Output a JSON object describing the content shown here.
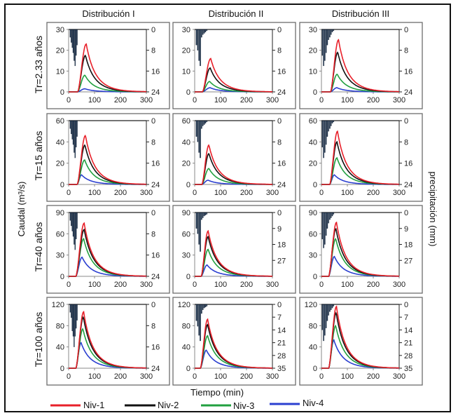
{
  "chart_data": {
    "type": "line",
    "layout": "grid 4 rows x 3 columns of hydrograph panels with inverted hyetograph bars",
    "ylabel_left": "Caudal (m³/s)",
    "ylabel_right": "precipitación (mm)",
    "xlabel": "Tiempo (min)",
    "columns": [
      "Distribución I",
      "Distribución II",
      "Distribución III"
    ],
    "rows": [
      "Tr=2.33 años",
      "Tr=15 años",
      "Tr=40 años",
      "Tr=100 años"
    ],
    "legend": [
      {
        "name": "Niv-1",
        "color": "#e8202a"
      },
      {
        "name": "Niv-2",
        "color": "#111111"
      },
      {
        "name": "Niv-3",
        "color": "#22a040"
      },
      {
        "name": "Niv-4",
        "color": "#2b3fd0"
      }
    ],
    "bar_color": "#1c3350",
    "x_ticks": [
      0,
      100,
      200,
      300
    ],
    "xlim": [
      0,
      300
    ],
    "row_axes": [
      {
        "ylim": [
          0,
          30
        ],
        "y_ticks": [
          0,
          10,
          20,
          30
        ],
        "precip_lim": [
          0,
          24
        ],
        "precip_ticks_by_col": [
          [
            0,
            8,
            16,
            24
          ],
          [
            0,
            8,
            16,
            24
          ],
          [
            0,
            8,
            16,
            24
          ]
        ]
      },
      {
        "ylim": [
          0,
          60
        ],
        "y_ticks": [
          0,
          20,
          40,
          60
        ],
        "precip_lim": [
          0,
          24
        ],
        "precip_ticks_by_col": [
          [
            0,
            8,
            16,
            24
          ],
          [
            0,
            8,
            16,
            24
          ],
          [
            0,
            8,
            16,
            24
          ]
        ]
      },
      {
        "ylim": [
          0,
          90
        ],
        "y_ticks": [
          0,
          30,
          60,
          90
        ],
        "precip_lim_by_col": [
          [
            0,
            24
          ],
          [
            0,
            36
          ],
          [
            0,
            36
          ]
        ],
        "precip_ticks_by_col": [
          [
            0,
            8,
            16,
            24
          ],
          [
            0,
            9,
            18,
            27
          ],
          [
            0,
            9,
            18,
            27
          ]
        ]
      },
      {
        "ylim": [
          0,
          120
        ],
        "y_ticks": [
          0,
          40,
          80,
          120
        ],
        "precip_lim_by_col": [
          [
            0,
            24
          ],
          [
            0,
            35
          ],
          [
            0,
            35
          ]
        ],
        "precip_ticks_by_col": [
          [
            0,
            8,
            16,
            24
          ],
          [
            0,
            7,
            14,
            21,
            28,
            35
          ],
          [
            0,
            7,
            14,
            21,
            28,
            35
          ]
        ]
      }
    ],
    "panels": [
      {
        "row": 0,
        "col": 0,
        "start": 35,
        "peaks": [
          {
            "t": 68,
            "q": 23
          },
          {
            "t": 65,
            "q": 17.5
          },
          {
            "t": 63,
            "q": 8
          },
          {
            "t": 63,
            "q": 1.5
          }
        ],
        "bars": [
          3,
          5,
          7,
          9,
          12,
          14,
          10,
          6
        ],
        "bar_span": [
          5,
          35
        ]
      },
      {
        "row": 0,
        "col": 1,
        "start": 30,
        "peaks": [
          {
            "t": 62,
            "q": 16
          },
          {
            "t": 60,
            "q": 11.5
          },
          {
            "t": 58,
            "q": 5
          },
          {
            "t": 60,
            "q": 2
          }
        ],
        "bars": [
          6,
          8,
          12,
          14,
          3,
          2,
          1.5,
          1,
          0.5
        ],
        "bar_span": [
          5,
          50
        ]
      },
      {
        "row": 0,
        "col": 2,
        "start": 35,
        "peaks": [
          {
            "t": 66,
            "q": 25
          },
          {
            "t": 63,
            "q": 19
          },
          {
            "t": 61,
            "q": 8.5
          },
          {
            "t": 60,
            "q": 2
          }
        ],
        "bars": [
          10,
          14,
          12,
          9,
          6,
          4,
          3,
          2,
          1,
          0.5
        ],
        "bar_span": [
          2,
          50
        ]
      },
      {
        "row": 1,
        "col": 0,
        "start": 33,
        "peaks": [
          {
            "t": 65,
            "q": 46
          },
          {
            "t": 63,
            "q": 37
          },
          {
            "t": 62,
            "q": 23
          },
          {
            "t": 50,
            "q": 9
          }
        ],
        "bars": [
          3,
          5,
          7,
          9,
          12,
          14,
          10,
          6
        ],
        "bar_span": [
          5,
          35
        ]
      },
      {
        "row": 1,
        "col": 1,
        "start": 28,
        "peaks": [
          {
            "t": 55,
            "q": 37
          },
          {
            "t": 55,
            "q": 29
          },
          {
            "t": 55,
            "q": 15
          },
          {
            "t": 52,
            "q": 4
          }
        ],
        "bars": [
          6,
          8,
          12,
          14,
          3,
          2,
          1.5,
          1,
          0.5
        ],
        "bar_span": [
          5,
          50
        ]
      },
      {
        "row": 1,
        "col": 2,
        "start": 32,
        "peaks": [
          {
            "t": 62,
            "q": 50
          },
          {
            "t": 60,
            "q": 40
          },
          {
            "t": 60,
            "q": 25
          },
          {
            "t": 50,
            "q": 9
          }
        ],
        "bars": [
          10,
          14,
          12,
          9,
          6,
          4,
          3,
          2,
          1,
          0.5
        ],
        "bar_span": [
          2,
          50
        ]
      },
      {
        "row": 2,
        "col": 0,
        "start": 28,
        "peaks": [
          {
            "t": 60,
            "q": 75
          },
          {
            "t": 60,
            "q": 66
          },
          {
            "t": 58,
            "q": 53
          },
          {
            "t": 52,
            "q": 27
          }
        ],
        "bars": [
          3,
          5,
          7,
          9,
          12,
          14,
          10,
          6
        ],
        "bar_span": [
          5,
          35
        ]
      },
      {
        "row": 2,
        "col": 1,
        "start": 25,
        "peaks": [
          {
            "t": 52,
            "q": 64
          },
          {
            "t": 52,
            "q": 56
          },
          {
            "t": 52,
            "q": 38
          },
          {
            "t": 48,
            "q": 16
          }
        ],
        "bars": [
          9,
          12,
          18,
          22,
          4,
          3,
          2,
          1.5,
          1
        ],
        "bar_span": [
          5,
          50
        ]
      },
      {
        "row": 2,
        "col": 2,
        "start": 28,
        "peaks": [
          {
            "t": 58,
            "q": 76
          },
          {
            "t": 56,
            "q": 67
          },
          {
            "t": 55,
            "q": 53
          },
          {
            "t": 50,
            "q": 28
          }
        ],
        "bars": [
          15,
          20,
          18,
          13,
          9,
          6,
          4,
          3,
          2,
          1
        ],
        "bar_span": [
          2,
          50
        ]
      },
      {
        "row": 3,
        "col": 0,
        "start": 28,
        "peaks": [
          {
            "t": 58,
            "q": 106
          },
          {
            "t": 57,
            "q": 96
          },
          {
            "t": 55,
            "q": 74
          },
          {
            "t": 48,
            "q": 48
          }
        ],
        "bars": [
          3,
          5,
          10,
          12,
          16,
          12,
          9,
          6
        ],
        "bar_span": [
          5,
          35
        ]
      },
      {
        "row": 3,
        "col": 1,
        "start": 22,
        "peaks": [
          {
            "t": 50,
            "q": 92
          },
          {
            "t": 50,
            "q": 82
          },
          {
            "t": 50,
            "q": 61
          },
          {
            "t": 45,
            "q": 34
          }
        ],
        "bars": [
          9,
          12,
          17,
          20,
          5,
          3,
          2,
          1.5,
          1
        ],
        "bar_span": [
          5,
          50
        ]
      },
      {
        "row": 3,
        "col": 2,
        "start": 28,
        "peaks": [
          {
            "t": 58,
            "q": 116
          },
          {
            "t": 57,
            "q": 104
          },
          {
            "t": 55,
            "q": 80
          },
          {
            "t": 48,
            "q": 53
          }
        ],
        "bars": [
          14,
          20,
          17,
          13,
          9,
          6,
          4,
          3,
          2,
          1
        ],
        "bar_span": [
          2,
          50
        ]
      }
    ]
  }
}
